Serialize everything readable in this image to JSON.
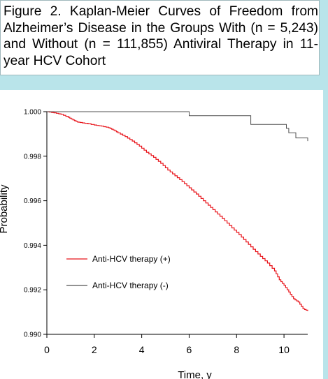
{
  "title": "Figure 2. Kaplan-Meier Curves of Freedom from Alzheimer’s Disease in the Groups With (n = 5,243) and Without (n = 111,855) Antiviral Therapy in 11-year HCV Cohort",
  "colors": {
    "background": "#b9e4ea",
    "with_therapy": "#e8141b",
    "without_therapy": "#505050"
  },
  "chart_data": {
    "type": "line",
    "xlabel": "Time, y",
    "ylabel": "Probability",
    "xlim": [
      0,
      11
    ],
    "ylim": [
      0.99,
      1.0
    ],
    "x_ticks": [
      "0",
      "2",
      "4",
      "6",
      "8",
      "10"
    ],
    "y_ticks": [
      "0.990",
      "0.992",
      "0.994",
      "0.996",
      "0.998",
      "1.000"
    ],
    "grid": false,
    "legend_position": "middle-left",
    "series": [
      {
        "name": "Anti-HCV therapy (+)",
        "color": "#e8141b",
        "x": [
          0,
          0.3,
          0.6,
          0.9,
          1.1,
          1.3,
          1.6,
          2.0,
          2.3,
          2.6,
          2.8,
          3.0,
          3.3,
          3.6,
          3.9,
          4.2,
          4.5,
          4.8,
          5.1,
          5.4,
          5.7,
          6.0,
          6.3,
          6.6,
          6.9,
          7.2,
          7.5,
          7.8,
          8.1,
          8.4,
          8.7,
          9.0,
          9.3,
          9.6,
          9.8,
          10.0,
          10.2,
          10.4,
          10.6,
          10.8,
          11.0
        ],
        "y": [
          1.0,
          0.99995,
          0.99988,
          0.99975,
          0.99963,
          0.99953,
          0.99948,
          0.9994,
          0.99935,
          0.99928,
          0.99918,
          0.99905,
          0.99888,
          0.99868,
          0.99845,
          0.99818,
          0.99795,
          0.99768,
          0.99738,
          0.99712,
          0.99686,
          0.99658,
          0.9963,
          0.996,
          0.9957,
          0.9954,
          0.9951,
          0.99478,
          0.99448,
          0.99415,
          0.99382,
          0.9935,
          0.9932,
          0.99285,
          0.99245,
          0.9922,
          0.9919,
          0.9916,
          0.99145,
          0.99115,
          0.99105
        ]
      },
      {
        "name": "Anti-HCV therapy (-)",
        "color": "#505050",
        "x": [
          0,
          6.0,
          6.0,
          8.6,
          8.6,
          10.1,
          10.1,
          10.2,
          10.2,
          10.5,
          10.5,
          11.0
        ],
        "y": [
          1.0,
          1.0,
          0.99982,
          0.99982,
          0.99943,
          0.99943,
          0.99925,
          0.99925,
          0.99905,
          0.99905,
          0.99882,
          0.99868
        ]
      }
    ]
  }
}
